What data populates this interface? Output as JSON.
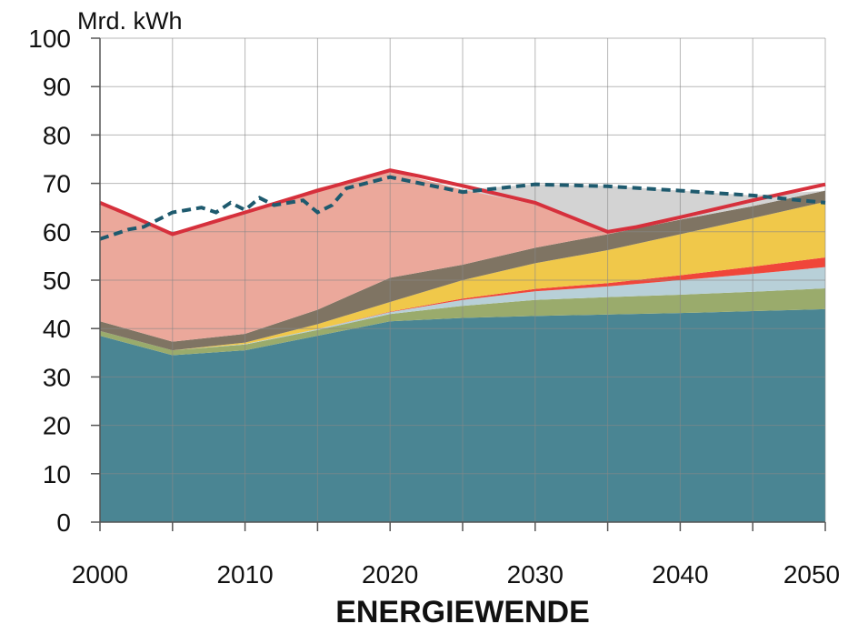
{
  "chart_data": {
    "type": "area",
    "title": "ENERGIEWENDE",
    "ylabel": "Mrd. kWh",
    "x": [
      2000,
      2005,
      2010,
      2015,
      2020,
      2025,
      2030,
      2035,
      2040,
      2045,
      2050
    ],
    "xlim": [
      2000,
      2050
    ],
    "xticks": [
      2000,
      2010,
      2020,
      2030,
      2040,
      2050
    ],
    "xgrid": [
      2000,
      2005,
      2010,
      2015,
      2020,
      2025,
      2030,
      2035,
      2040,
      2045,
      2050
    ],
    "ylim": [
      0,
      100
    ],
    "yticks": [
      0,
      10,
      20,
      30,
      40,
      50,
      60,
      70,
      80,
      90,
      100
    ],
    "grid": true,
    "stacked": true,
    "series": [
      {
        "color": "#4a8593",
        "values": [
          38.5,
          34.5,
          35.5,
          38.5,
          41.5,
          42.2,
          42.6,
          42.9,
          43.2,
          43.6,
          44
        ]
      },
      {
        "color": "#9aab6c",
        "values": [
          1,
          1,
          1.2,
          1.2,
          1.5,
          2.5,
          3.3,
          3.6,
          3.8,
          4,
          4.3
        ]
      },
      {
        "color": "#b8d0d8",
        "values": [
          0,
          0,
          0.1,
          0.2,
          0.4,
          1.2,
          1.8,
          2.2,
          3,
          3.7,
          4.4
        ]
      },
      {
        "color": "#f0463a",
        "values": [
          0,
          0,
          0,
          0,
          0.1,
          0.3,
          0.5,
          0.7,
          1,
          1.5,
          2
        ]
      },
      {
        "color": "#f0c84a",
        "values": [
          0,
          0,
          0.3,
          1,
          2,
          3.8,
          5.3,
          6.8,
          8.5,
          10,
          11.5
        ]
      },
      {
        "color": "#7f7463",
        "values": [
          2,
          1.8,
          1.8,
          3,
          5,
          3.2,
          3.2,
          3.3,
          3,
          2.5,
          2.3
        ]
      },
      {
        "color": "#eba89b",
        "values": [
          24.5,
          22.2,
          25.1,
          25.1,
          22,
          15.5,
          9,
          0.5,
          0,
          0,
          0
        ]
      },
      {
        "color": "#d3d3d3",
        "values": [
          0,
          0,
          0,
          0,
          0,
          0,
          4.1,
          9.5,
          6,
          2.2,
          0
        ]
      }
    ],
    "lines": [
      {
        "color": "#d6303c",
        "style": "solid",
        "x": [
          2000,
          2002,
          2005,
          2010,
          2015,
          2020,
          2022,
          2025,
          2030,
          2035,
          2037,
          2040,
          2045,
          2050
        ],
        "values": [
          66,
          63.5,
          59.5,
          64,
          68.5,
          72.7,
          71.5,
          69.5,
          66,
          60,
          61,
          63,
          66.5,
          69.8
        ]
      },
      {
        "color": "#1e5a6e",
        "style": "dashed",
        "x": [
          2000,
          2002,
          2003,
          2005,
          2007,
          2008,
          2009,
          2010,
          2011,
          2012,
          2013,
          2014,
          2015,
          2016,
          2017,
          2020,
          2025,
          2030,
          2035,
          2040,
          2045,
          2050
        ],
        "values": [
          58.5,
          60.5,
          61,
          64,
          65,
          64,
          66,
          64.5,
          67,
          65.5,
          66,
          66.5,
          64,
          65.5,
          69,
          71.3,
          68.2,
          69.8,
          69.4,
          68.5,
          67.5,
          66
        ]
      }
    ]
  }
}
